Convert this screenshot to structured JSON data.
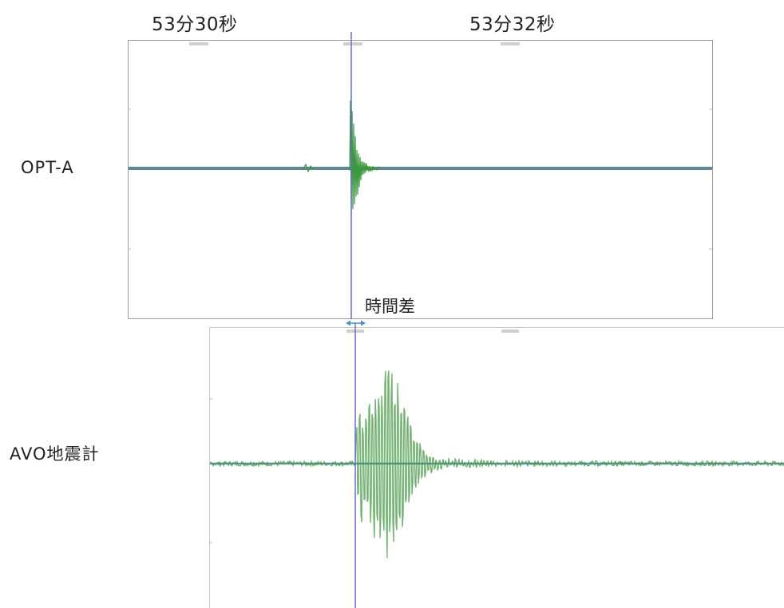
{
  "time_labels": [
    "53分30秒",
    "53分32秒"
  ],
  "trace_labels": [
    "OPT-A",
    "AVO地震計"
  ],
  "time_difference_label": "時間差",
  "chart_data": [
    {
      "type": "line",
      "name": "OPT-A",
      "title": "",
      "xlabel": "",
      "ylabel": "",
      "x_ticks": [
        "53分30秒",
        "53分32秒"
      ],
      "grid": false,
      "color": "#3a9a3a",
      "baseline_color": "#5a8a9a",
      "event_onset": "53分30秒 + ~0.8s",
      "peak_amplitude_rel": 1.0,
      "ylim": [
        -1,
        1
      ]
    },
    {
      "type": "line",
      "name": "AVO地震計",
      "title": "",
      "xlabel": "",
      "ylabel": "",
      "grid": false,
      "color": "#3a9a3a",
      "baseline_color": "#6a8fb8",
      "peak_amplitude_rel": 1.0,
      "ylim": [
        -1,
        1
      ]
    }
  ],
  "colors": {
    "marker_line": "#6a6ad8",
    "arrow": "#4a8fd0",
    "frame": "#9a9a9a"
  }
}
